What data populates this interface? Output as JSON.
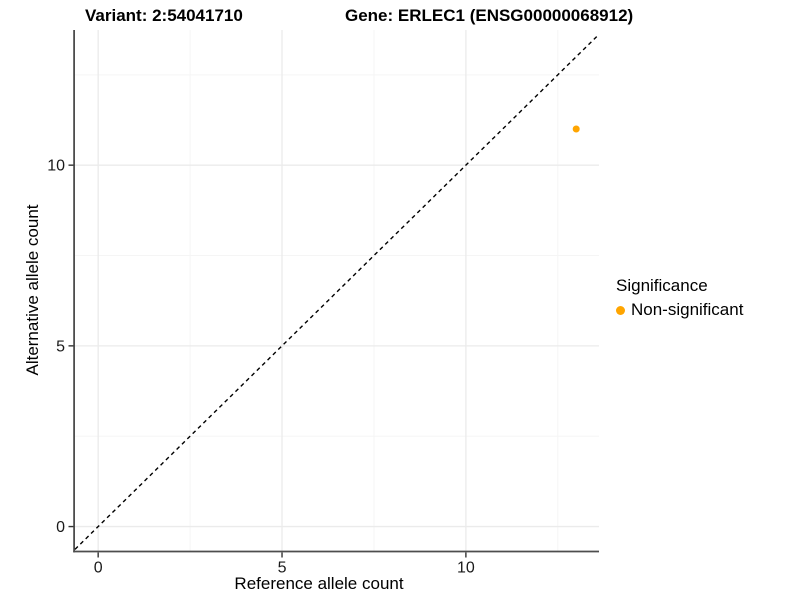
{
  "title": {
    "variant": "Variant: 2:54041710",
    "gene": "Gene: ERLEC1 (ENSG00000068912)"
  },
  "legend": {
    "title": "Significance",
    "items": [
      {
        "label": "Non-significant",
        "color": "#FFA500"
      }
    ]
  },
  "colors": {
    "point": "#FFA500",
    "grid_major": "#ebebeb",
    "grid_minor": "#f5f5f5",
    "axis_line": "#4d4d4d",
    "tick_mark": "#333333",
    "tick_text": "#1a1a1a",
    "identity_line": "#000000"
  },
  "chart_data": {
    "type": "scatter",
    "title": "Variant: 2:54041710   Gene: ERLEC1 (ENSG00000068912)",
    "xlabel": "Reference allele count",
    "ylabel": "Alternative allele count",
    "xlim": [
      -0.63,
      13.62
    ],
    "ylim": [
      -0.69,
      13.74
    ],
    "x_ticks_major": [
      0,
      5,
      10
    ],
    "x_ticks_minor": [
      2.5,
      7.5,
      12.5
    ],
    "y_ticks_major": [
      0,
      5,
      10
    ],
    "y_ticks_minor": [
      2.5,
      7.5,
      12.5
    ],
    "grid": true,
    "legend_position": "right",
    "series": [
      {
        "name": "Non-significant",
        "color": "#FFA500",
        "points": [
          {
            "x": 13,
            "y": 11
          }
        ]
      }
    ],
    "reference_line": {
      "slope": 1,
      "intercept": 0,
      "style": "dashed",
      "color": "#000000"
    }
  }
}
